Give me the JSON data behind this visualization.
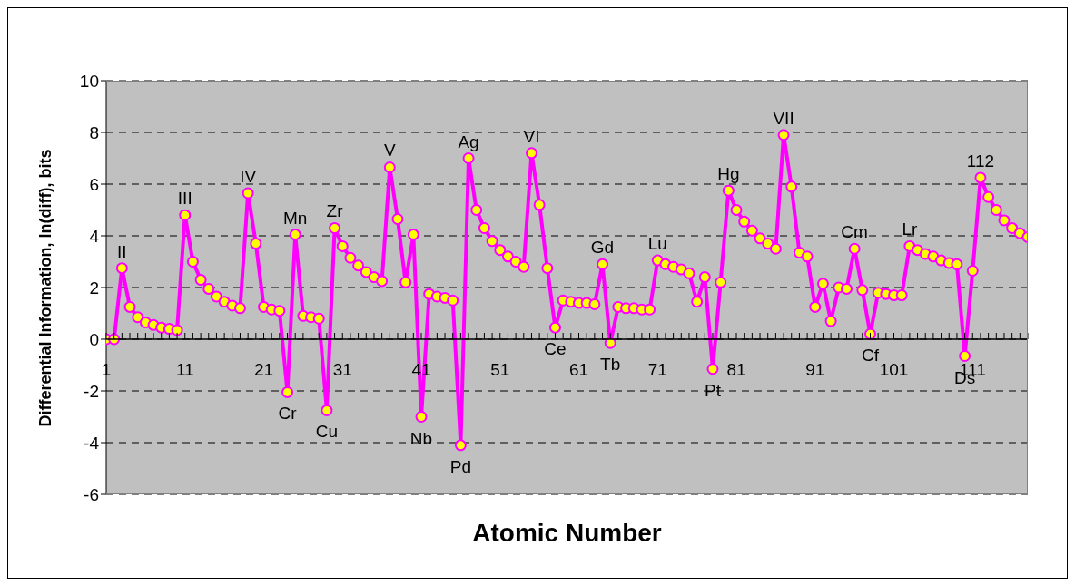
{
  "chart_data": {
    "type": "line",
    "xlabel": "Atomic Number",
    "ylabel": "Differential Information, ln(diff), bits",
    "x": [
      1,
      2,
      3,
      4,
      5,
      6,
      7,
      8,
      9,
      10,
      11,
      12,
      13,
      14,
      15,
      16,
      17,
      18,
      19,
      20,
      21,
      22,
      23,
      24,
      25,
      26,
      27,
      28,
      29,
      30,
      31,
      32,
      33,
      34,
      35,
      36,
      37,
      38,
      39,
      40,
      41,
      42,
      43,
      44,
      45,
      46,
      47,
      48,
      49,
      50,
      51,
      52,
      53,
      54,
      55,
      56,
      57,
      58,
      59,
      60,
      61,
      62,
      63,
      64,
      65,
      66,
      67,
      68,
      69,
      70,
      71,
      72,
      73,
      74,
      75,
      76,
      77,
      78,
      79,
      80,
      81,
      82,
      83,
      84,
      85,
      86,
      87,
      88,
      89,
      90,
      91,
      92,
      93,
      94,
      95,
      96,
      97,
      98,
      99,
      100,
      101,
      102,
      103,
      104,
      105,
      106,
      107,
      108,
      109,
      110,
      111,
      112,
      113,
      114,
      115,
      116,
      117,
      118
    ],
    "series": [
      {
        "color": "#ff00ff",
        "values": [
          0.0,
          0.0,
          2.75,
          1.25,
          0.85,
          0.65,
          0.55,
          0.45,
          0.4,
          0.35,
          4.8,
          3.0,
          2.3,
          1.95,
          1.65,
          1.45,
          1.3,
          1.2,
          5.65,
          3.7,
          1.25,
          1.15,
          1.1,
          -2.05,
          4.05,
          0.9,
          0.85,
          0.8,
          -2.75,
          4.3,
          3.6,
          3.15,
          2.85,
          2.6,
          2.4,
          2.25,
          6.65,
          4.65,
          2.2,
          4.05,
          -3.0,
          1.75,
          1.65,
          1.6,
          1.5,
          -4.1,
          7.0,
          5.0,
          4.3,
          3.8,
          3.45,
          3.2,
          3.0,
          2.8,
          7.2,
          5.2,
          2.75,
          0.45,
          1.5,
          1.45,
          1.4,
          1.4,
          1.35,
          2.9,
          -0.15,
          1.25,
          1.2,
          1.2,
          1.15,
          1.15,
          3.05,
          2.9,
          2.8,
          2.7,
          2.55,
          1.45,
          2.4,
          -1.15,
          2.2,
          5.75,
          5.0,
          4.55,
          4.2,
          3.9,
          3.7,
          3.5,
          7.9,
          5.9,
          3.35,
          3.2,
          1.25,
          2.15,
          0.7,
          2.0,
          1.95,
          3.5,
          1.9,
          0.2,
          1.8,
          1.75,
          1.7,
          1.7,
          3.6,
          3.45,
          3.3,
          3.2,
          3.05,
          2.95,
          2.9,
          -0.65,
          2.65,
          6.25,
          5.5,
          5.0,
          4.6,
          4.3,
          4.1,
          3.95
        ]
      }
    ],
    "xlim": [
      1,
      118
    ],
    "xticks": [
      1,
      {
        "value": 2,
        "label": null
      },
      {
        "value": 3,
        "label": null
      },
      {
        "value": 4,
        "label": null
      },
      {
        "value": 5,
        "label": null
      },
      {
        "value": 6,
        "label": null
      },
      {
        "value": 7,
        "label": null
      },
      {
        "value": 8,
        "label": null
      },
      {
        "value": 9,
        "label": null
      },
      {
        "value": 10,
        "label": null
      },
      11,
      {
        "value": 12,
        "label": null
      },
      {
        "value": 13,
        "label": null
      },
      {
        "value": 14,
        "label": null
      },
      {
        "value": 15,
        "label": null
      },
      {
        "value": 16,
        "label": null
      },
      {
        "value": 17,
        "label": null
      },
      {
        "value": 18,
        "label": null
      },
      {
        "value": 19,
        "label": null
      },
      {
        "value": 20,
        "label": null
      },
      21,
      {
        "value": 22,
        "label": null
      },
      {
        "value": 23,
        "label": null
      },
      {
        "value": 24,
        "label": null
      },
      {
        "value": 25,
        "label": null
      },
      {
        "value": 26,
        "label": null
      },
      {
        "value": 27,
        "label": null
      },
      {
        "value": 28,
        "label": null
      },
      {
        "value": 29,
        "label": null
      },
      {
        "value": 30,
        "label": null
      },
      31,
      {
        "value": 32,
        "label": null
      },
      {
        "value": 33,
        "label": null
      },
      {
        "value": 34,
        "label": null
      },
      {
        "value": 35,
        "label": null
      },
      {
        "value": 36,
        "label": null
      },
      {
        "value": 37,
        "label": null
      },
      {
        "value": 38,
        "label": null
      },
      {
        "value": 39,
        "label": null
      },
      {
        "value": 40,
        "label": null
      },
      41,
      {
        "value": 42,
        "label": null
      },
      {
        "value": 43,
        "label": null
      },
      {
        "value": 44,
        "label": null
      },
      {
        "value": 45,
        "label": null
      },
      {
        "value": 46,
        "label": null
      },
      {
        "value": 47,
        "label": null
      },
      {
        "value": 48,
        "label": null
      },
      {
        "value": 49,
        "label": null
      },
      {
        "value": 50,
        "label": null
      },
      51,
      {
        "value": 52,
        "label": null
      },
      {
        "value": 53,
        "label": null
      },
      {
        "value": 54,
        "label": null
      },
      {
        "value": 55,
        "label": null
      },
      {
        "value": 56,
        "label": null
      },
      {
        "value": 57,
        "label": null
      },
      {
        "value": 58,
        "label": null
      },
      {
        "value": 59,
        "label": null
      },
      {
        "value": 60,
        "label": null
      },
      61,
      {
        "value": 62,
        "label": null
      },
      {
        "value": 63,
        "label": null
      },
      {
        "value": 64,
        "label": null
      },
      {
        "value": 65,
        "label": null
      },
      {
        "value": 66,
        "label": null
      },
      {
        "value": 67,
        "label": null
      },
      {
        "value": 68,
        "label": null
      },
      {
        "value": 69,
        "label": null
      },
      {
        "value": 70,
        "label": null
      },
      71,
      {
        "value": 72,
        "label": null
      },
      {
        "value": 73,
        "label": null
      },
      {
        "value": 74,
        "label": null
      },
      {
        "value": 75,
        "label": null
      },
      {
        "value": 76,
        "label": null
      },
      {
        "value": 77,
        "label": null
      },
      {
        "value": 78,
        "label": null
      },
      {
        "value": 79,
        "label": null
      },
      {
        "value": 80,
        "label": null
      },
      81,
      {
        "value": 82,
        "label": null
      },
      {
        "value": 83,
        "label": null
      },
      {
        "value": 84,
        "label": null
      },
      {
        "value": 85,
        "label": null
      },
      {
        "value": 86,
        "label": null
      },
      {
        "value": 87,
        "label": null
      },
      {
        "value": 88,
        "label": null
      },
      {
        "value": 89,
        "label": null
      },
      {
        "value": 90,
        "label": null
      },
      91,
      {
        "value": 92,
        "label": null
      },
      {
        "value": 93,
        "label": null
      },
      {
        "value": 94,
        "label": null
      },
      {
        "value": 95,
        "label": null
      },
      {
        "value": 96,
        "label": null
      },
      {
        "value": 97,
        "label": null
      },
      {
        "value": 98,
        "label": null
      },
      {
        "value": 99,
        "label": null
      },
      {
        "value": 100,
        "label": null
      },
      101,
      {
        "value": 102,
        "label": null
      },
      {
        "value": 103,
        "label": null
      },
      {
        "value": 104,
        "label": null
      },
      {
        "value": 105,
        "label": null
      },
      {
        "value": 106,
        "label": null
      },
      {
        "value": 107,
        "label": null
      },
      {
        "value": 108,
        "label": null
      },
      {
        "value": 109,
        "label": null
      },
      {
        "value": 110,
        "label": null
      },
      111,
      {
        "value": 112,
        "label": null
      },
      {
        "value": 113,
        "label": null
      },
      {
        "value": 114,
        "label": null
      },
      {
        "value": 115,
        "label": null
      },
      {
        "value": 116,
        "label": null
      },
      {
        "value": 117,
        "label": null
      },
      {
        "value": 118,
        "label": null
      }
    ],
    "ylim": [
      -6,
      10
    ],
    "yticks": [
      -6,
      -4,
      -2,
      0,
      2,
      4,
      6,
      8,
      10
    ],
    "grid": "y",
    "marker": "circle",
    "line_style": "solid",
    "annotations": [
      {
        "text": "II",
        "x": 3,
        "y": 2.75
      },
      {
        "text": "III",
        "x": 11,
        "y": 4.8
      },
      {
        "text": "IV",
        "x": 19,
        "y": 5.65
      },
      {
        "text": "Cr",
        "x": 24,
        "y": -2.05
      },
      {
        "text": "Mn",
        "x": 25,
        "y": 4.05
      },
      {
        "text": "Cu",
        "x": 29,
        "y": -2.75
      },
      {
        "text": "Zr",
        "x": 30,
        "y": 4.3
      },
      {
        "text": "V",
        "x": 37,
        "y": 6.65
      },
      {
        "text": "Nb",
        "x": 41,
        "y": -3.0
      },
      {
        "text": "Pd",
        "x": 46,
        "y": -4.1
      },
      {
        "text": "Ag",
        "x": 47,
        "y": 7.0
      },
      {
        "text": "VI",
        "x": 55,
        "y": 7.2
      },
      {
        "text": "Ce",
        "x": 58,
        "y": 0.45
      },
      {
        "text": "Gd",
        "x": 64,
        "y": 2.9
      },
      {
        "text": "Tb",
        "x": 65,
        "y": -0.15
      },
      {
        "text": "Lu",
        "x": 71,
        "y": 3.05
      },
      {
        "text": "Pt",
        "x": 78,
        "y": -1.15
      },
      {
        "text": "Hg",
        "x": 80,
        "y": 5.75
      },
      {
        "text": "VII",
        "x": 87,
        "y": 7.9
      },
      {
        "text": "Cm",
        "x": 96,
        "y": 3.5
      },
      {
        "text": "Cf",
        "x": 98,
        "y": 0.2
      },
      {
        "text": "Lr",
        "x": 103,
        "y": 3.6
      },
      {
        "text": "Ds",
        "x": 110,
        "y": -0.65
      },
      {
        "text": "112",
        "x": 112,
        "y": 6.25
      }
    ]
  }
}
